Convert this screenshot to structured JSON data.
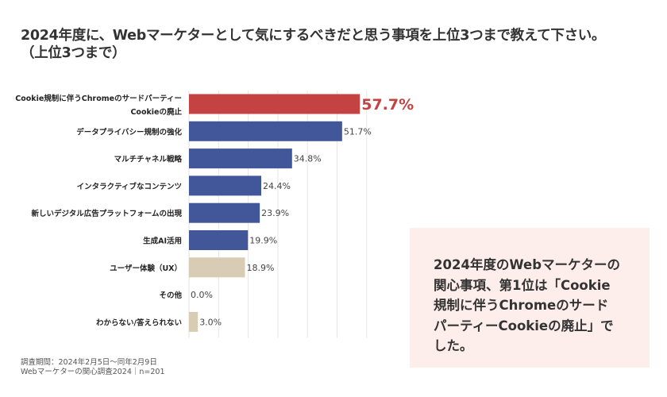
{
  "title": {
    "line1": "2024年度に、Webマーケターとして気にするべきだと思う事項を上位3つまで教えて下さい。",
    "line2": "（上位3つまで）"
  },
  "chart_data": {
    "type": "bar",
    "orientation": "horizontal",
    "categories": [
      [
        "Cookie規制に伴うChromeのサードパーティー",
        "Cookieの廃止"
      ],
      [
        "データプライバシー規制の強化"
      ],
      [
        "マルチチャネル戦略"
      ],
      [
        "インタラクティブなコンテンツ"
      ],
      [
        "新しいデジタル広告プラットフォームの出現"
      ],
      [
        "生成AI活用"
      ],
      [
        "ユーザー体験（UX）"
      ],
      [
        "その他"
      ],
      [
        "わからない/答えられない"
      ]
    ],
    "values": [
      57.7,
      51.7,
      34.8,
      24.4,
      23.9,
      19.9,
      18.9,
      0.0,
      3.0
    ],
    "labels": [
      "57.7%",
      "51.7%",
      "34.8%",
      "24.4%",
      "23.9%",
      "19.9%",
      "18.9%",
      "0.0%",
      "3.0%"
    ],
    "bar_colors": [
      "#c44242",
      "#42579a",
      "#42579a",
      "#42579a",
      "#42579a",
      "#42579a",
      "#d8ccb4",
      "#d8ccb4",
      "#d8ccb4"
    ],
    "highlight_label_color": "#c44242",
    "xlim": [
      0,
      60
    ],
    "grid": true,
    "grid_step": 10,
    "axis_ticks_visible": false
  },
  "notes": {
    "period": "調査期間：2024年2月5日～同年2月9日",
    "source": "Webマーケターの関心調査2024｜n=201"
  },
  "callout": {
    "lines": [
      "2024年度のWebマーケターの",
      "関心事項、第1位は「Cookie",
      "規制に伴うChromeのサード",
      "パーティーCookieの廃止」で",
      "した。"
    ],
    "background": "#fdeeeb"
  }
}
